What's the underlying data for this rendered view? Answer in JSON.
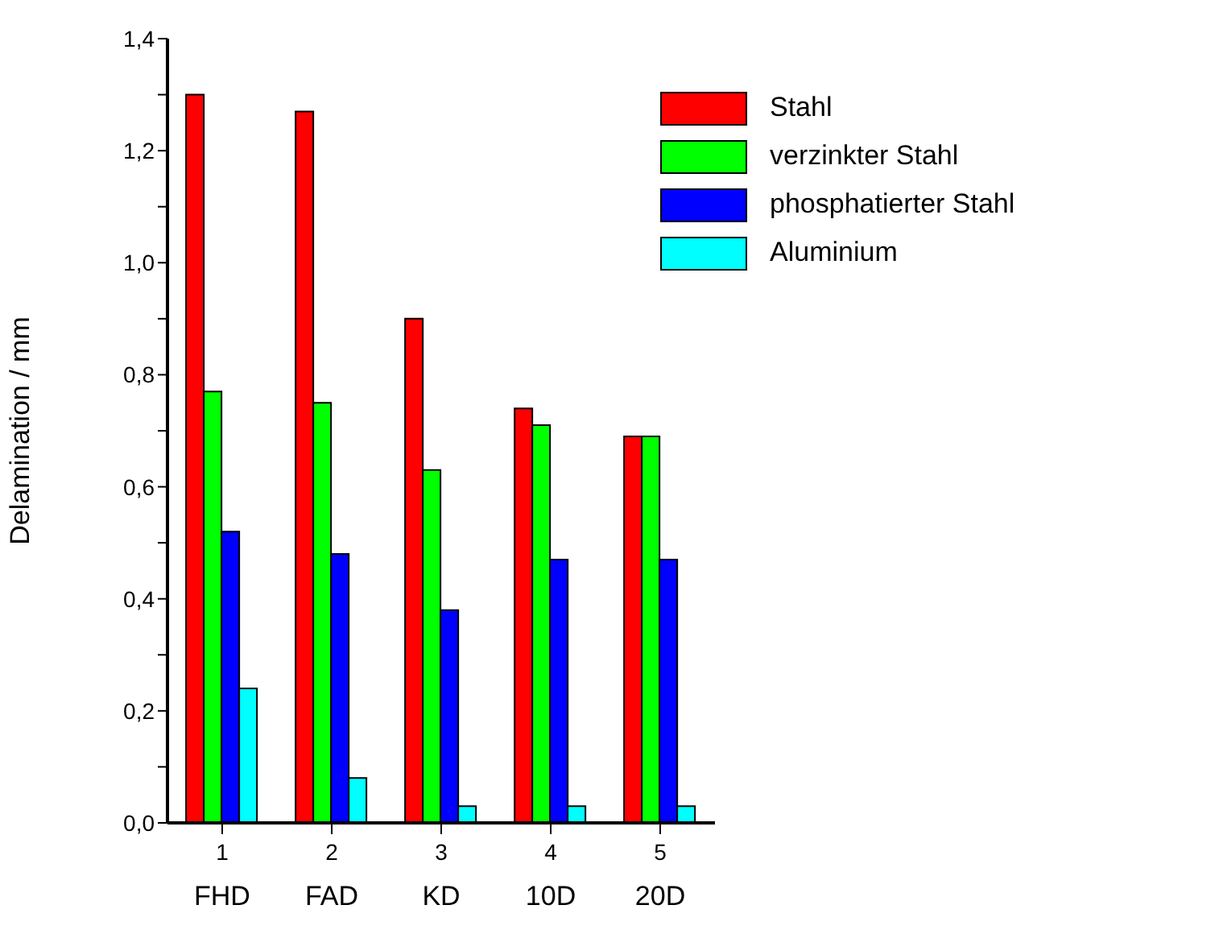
{
  "chart_data": {
    "type": "bar",
    "ylabel": "Delamination / mm",
    "categories": [
      "1",
      "2",
      "3",
      "4",
      "5"
    ],
    "annotations": [
      "FHD",
      "FAD",
      "KD",
      "10D",
      "20D"
    ],
    "series": [
      {
        "name": "Stahl",
        "color": "#ff0000",
        "values": [
          1.3,
          1.27,
          0.9,
          0.74,
          0.69
        ]
      },
      {
        "name": "verzinkter Stahl",
        "color": "#00ff00",
        "values": [
          0.77,
          0.75,
          0.63,
          0.71,
          0.69
        ]
      },
      {
        "name": "phosphatierter Stahl",
        "color": "#0000ff",
        "values": [
          0.52,
          0.48,
          0.38,
          0.47,
          0.47
        ]
      },
      {
        "name": "Aluminium",
        "color": "#00ffff",
        "values": [
          0.24,
          0.08,
          0.03,
          0.03,
          0.03
        ]
      }
    ],
    "ylim": [
      0,
      1.4
    ],
    "yticks": [
      {
        "value": 0,
        "label": "0,0"
      },
      {
        "value": 0.1,
        "label": null
      },
      {
        "value": 0.2,
        "label": "0,2"
      },
      {
        "value": 0.3,
        "label": null
      },
      {
        "value": 0.4,
        "label": "0,4"
      },
      {
        "value": 0.5,
        "label": null
      },
      {
        "value": 0.6,
        "label": "0,6"
      },
      {
        "value": 0.7,
        "label": null
      },
      {
        "value": 0.8,
        "label": "0,8"
      },
      {
        "value": 0.9,
        "label": null
      },
      {
        "value": 1.0,
        "label": "1,0"
      },
      {
        "value": 1.1,
        "label": null
      },
      {
        "value": 1.2,
        "label": "1,2"
      },
      {
        "value": 1.3,
        "label": null
      },
      {
        "value": 1.4,
        "label": "1,4"
      }
    ],
    "legend": "top right",
    "grid": false
  }
}
